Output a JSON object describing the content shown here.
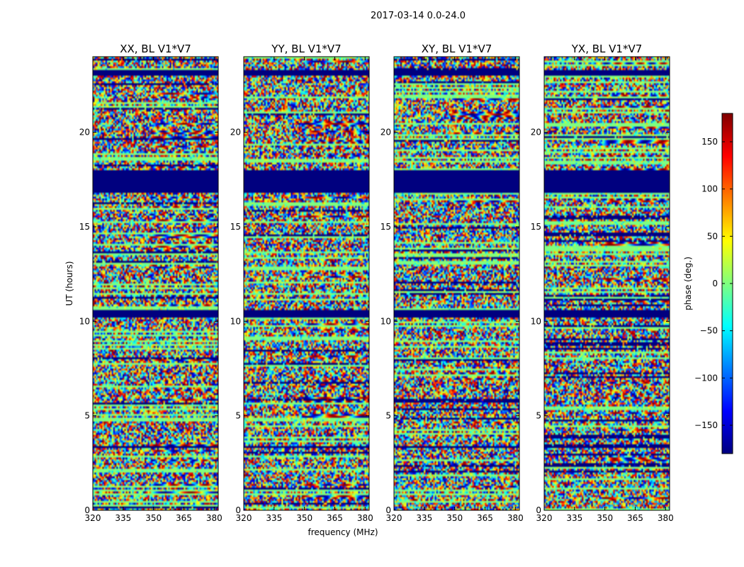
{
  "figure_title": "2017-03-14 0.0-24.0",
  "chart_data": {
    "type": "heatmap",
    "suptitle": "2017-03-14 0.0-24.0",
    "xlabel": "frequency (MHz)",
    "ylabel": "UT (hours)",
    "xlim": [
      320,
      382
    ],
    "ylim": [
      0,
      24
    ],
    "xticks": [
      320,
      335,
      350,
      365,
      380
    ],
    "yticks": [
      0,
      5,
      10,
      15,
      20
    ],
    "panels": [
      {
        "title": "XX, BL V1*V7",
        "polarization": "XX"
      },
      {
        "title": "YY, BL V1*V7",
        "polarization": "YY"
      },
      {
        "title": "XY, BL V1*V7",
        "polarization": "XY"
      },
      {
        "title": "YX, BL V1*V7",
        "polarization": "YX"
      }
    ],
    "flagged_time_ranges_hours": [
      [
        16.8,
        18.0
      ],
      [
        10.2,
        10.6
      ],
      [
        23.0,
        23.3
      ],
      [
        3.3,
        3.4
      ]
    ],
    "colorbar": {
      "label": "phase (deg.)",
      "range": [
        -180,
        180
      ],
      "ticks": [
        150,
        100,
        50,
        0,
        -50,
        -100,
        -150
      ],
      "tick_labels": [
        "150",
        "100",
        "50",
        "0",
        "−50",
        "−100",
        "−150"
      ],
      "colormap": "jet",
      "colors": [
        "#00007f",
        "#0000ff",
        "#007fff",
        "#00ffff",
        "#7fff7f",
        "#ffff00",
        "#ff7f00",
        "#ff0000",
        "#7f0000"
      ]
    }
  }
}
